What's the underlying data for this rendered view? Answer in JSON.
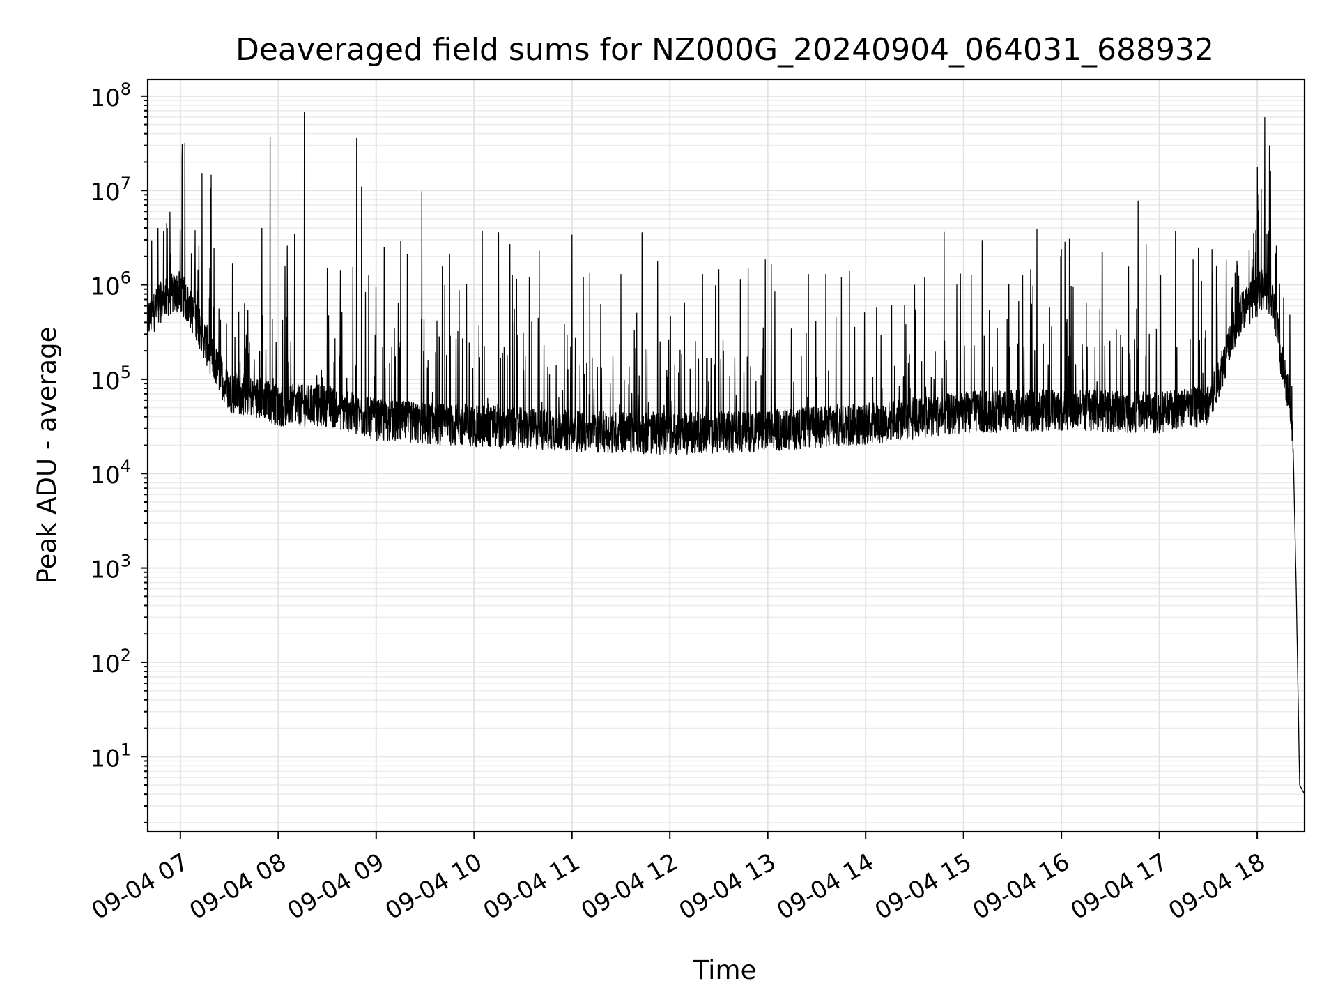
{
  "chart_data": {
    "type": "line",
    "title": "Deaveraged field sums for NZ000G_20240904_064031_688932",
    "xlabel": "Time",
    "ylabel": "Peak ADU - average",
    "yscale": "log",
    "grid": true,
    "xlim": [
      "2024-09-04 06:40",
      "2024-09-04 18:29"
    ],
    "ylim": [
      1.6,
      150000000
    ],
    "x_ticks": [
      {
        "time": "2024-09-04 07:00",
        "label": "09-04 07"
      },
      {
        "time": "2024-09-04 08:00",
        "label": "09-04 08"
      },
      {
        "time": "2024-09-04 09:00",
        "label": "09-04 09"
      },
      {
        "time": "2024-09-04 10:00",
        "label": "09-04 10"
      },
      {
        "time": "2024-09-04 11:00",
        "label": "09-04 11"
      },
      {
        "time": "2024-09-04 12:00",
        "label": "09-04 12"
      },
      {
        "time": "2024-09-04 13:00",
        "label": "09-04 13"
      },
      {
        "time": "2024-09-04 14:00",
        "label": "09-04 14"
      },
      {
        "time": "2024-09-04 15:00",
        "label": "09-04 15"
      },
      {
        "time": "2024-09-04 16:00",
        "label": "09-04 16"
      },
      {
        "time": "2024-09-04 17:00",
        "label": "09-04 17"
      },
      {
        "time": "2024-09-04 18:00",
        "label": "09-04 18"
      }
    ],
    "y_ticks": [
      {
        "value": 10,
        "base": "10",
        "exp": "1"
      },
      {
        "value": 100,
        "base": "10",
        "exp": "2"
      },
      {
        "value": 1000,
        "base": "10",
        "exp": "3"
      },
      {
        "value": 10000,
        "base": "10",
        "exp": "4"
      },
      {
        "value": 100000,
        "base": "10",
        "exp": "5"
      },
      {
        "value": 1000000,
        "base": "10",
        "exp": "6"
      },
      {
        "value": 10000000,
        "base": "10",
        "exp": "7"
      },
      {
        "value": 100000000,
        "base": "10",
        "exp": "8"
      }
    ],
    "series": [
      {
        "color": "#000000",
        "baseline": [
          [
            "2024-09-04 06:40",
            400000
          ],
          [
            "2024-09-04 06:50",
            700000
          ],
          [
            "2024-09-04 07:00",
            800000
          ],
          [
            "2024-09-04 07:10",
            400000
          ],
          [
            "2024-09-04 07:20",
            150000
          ],
          [
            "2024-09-04 07:30",
            70000
          ],
          [
            "2024-09-04 07:50",
            60000
          ],
          [
            "2024-09-04 08:00",
            50000
          ],
          [
            "2024-09-04 08:30",
            50000
          ],
          [
            "2024-09-04 09:00",
            35000
          ],
          [
            "2024-09-04 10:00",
            30000
          ],
          [
            "2024-09-04 11:00",
            27000
          ],
          [
            "2024-09-04 12:00",
            25000
          ],
          [
            "2024-09-04 13:00",
            27000
          ],
          [
            "2024-09-04 14:00",
            32000
          ],
          [
            "2024-09-04 15:00",
            42000
          ],
          [
            "2024-09-04 16:00",
            45000
          ],
          [
            "2024-09-04 17:00",
            42000
          ],
          [
            "2024-09-04 17:30",
            50000
          ],
          [
            "2024-09-04 17:40",
            150000
          ],
          [
            "2024-09-04 17:50",
            500000
          ],
          [
            "2024-09-04 18:05",
            900000
          ],
          [
            "2024-09-04 18:10",
            600000
          ],
          [
            "2024-09-04 18:15",
            150000
          ],
          [
            "2024-09-04 18:20",
            60000
          ],
          [
            "2024-09-04 18:22",
            20000
          ],
          [
            "2024-09-04 18:24",
            500
          ],
          [
            "2024-09-04 18:26",
            5
          ],
          [
            "2024-09-04 18:29",
            4
          ]
        ],
        "spikes": [
          [
            "2024-09-04 06:52",
            4000000
          ],
          [
            "2024-09-04 07:09",
            3800000
          ],
          [
            "2024-09-04 07:18",
            1500000
          ],
          [
            "2024-09-04 07:32",
            1700000
          ],
          [
            "2024-09-04 07:50",
            4000000
          ],
          [
            "2024-09-04 07:55",
            37000000
          ],
          [
            "2024-09-04 08:10",
            3500000
          ],
          [
            "2024-09-04 08:16",
            68000000
          ],
          [
            "2024-09-04 08:30",
            1500000
          ],
          [
            "2024-09-04 08:48",
            36000000
          ],
          [
            "2024-09-04 08:51",
            11000000
          ],
          [
            "2024-09-04 09:05",
            2500000
          ],
          [
            "2024-09-04 09:15",
            2900000
          ],
          [
            "2024-09-04 09:28",
            9800000
          ],
          [
            "2024-09-04 09:45",
            2100000
          ],
          [
            "2024-09-04 10:05",
            3700000
          ],
          [
            "2024-09-04 10:15",
            3600000
          ],
          [
            "2024-09-04 10:22",
            2700000
          ],
          [
            "2024-09-04 10:40",
            2300000
          ],
          [
            "2024-09-04 11:00",
            3400000
          ],
          [
            "2024-09-04 11:30",
            1300000
          ],
          [
            "2024-09-04 11:43",
            3600000
          ],
          [
            "2024-09-04 12:20",
            1300000
          ],
          [
            "2024-09-04 12:48",
            1500000
          ],
          [
            "2024-09-04 13:25",
            1300000
          ],
          [
            "2024-09-04 13:50",
            1400000
          ],
          [
            "2024-09-04 14:30",
            1000000
          ],
          [
            "2024-09-04 14:58",
            1300000
          ],
          [
            "2024-09-04 15:45",
            3900000
          ],
          [
            "2024-09-04 16:00",
            2400000
          ],
          [
            "2024-09-04 16:25",
            2200000
          ],
          [
            "2024-09-04 16:47",
            7800000
          ],
          [
            "2024-09-04 17:10",
            3700000
          ],
          [
            "2024-09-04 17:24",
            2500000
          ],
          [
            "2024-09-04 17:35",
            1600000
          ],
          [
            "2024-09-04 18:06",
            3500000
          ]
        ]
      }
    ]
  }
}
